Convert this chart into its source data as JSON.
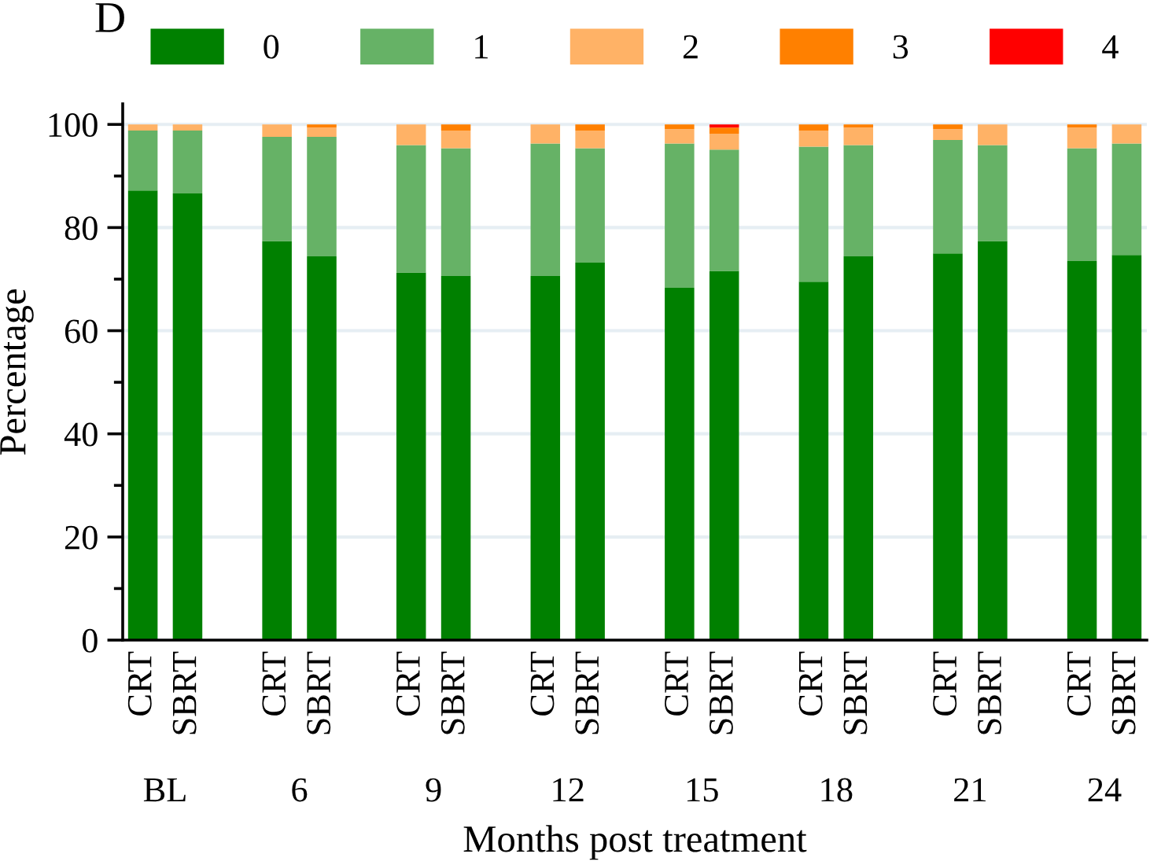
{
  "chart_data": {
    "type": "bar",
    "stacked": true,
    "title": "D",
    "xlabel": "Months post treatment",
    "ylabel": "Percentage",
    "categories": [
      "CRT",
      "SBRT",
      null,
      "CRT",
      "SBRT",
      null,
      "CRT",
      "SBRT",
      null,
      "CRT",
      "SBRT",
      null,
      "CRT",
      "SBRT",
      null,
      "CRT",
      "SBRT",
      null,
      "CRT",
      "SBRT",
      null,
      "CRT",
      "SBRT"
    ],
    "series": [
      {
        "name": "0",
        "color": "#008000",
        "values": [
          87.2,
          86.6,
          null,
          77.4,
          74.4,
          null,
          71.3,
          70.6,
          null,
          70.6,
          73.2,
          null,
          68.3,
          71.6,
          null,
          69.5,
          74.4,
          null,
          75.0,
          77.4,
          null,
          73.5,
          74.7
        ]
      },
      {
        "name": "1",
        "color": "#66b266",
        "values": [
          11.6,
          12.2,
          null,
          20.2,
          23.2,
          null,
          24.7,
          24.8,
          null,
          25.7,
          22.2,
          null,
          28.0,
          23.5,
          null,
          26.2,
          21.6,
          null,
          22.0,
          18.6,
          null,
          21.9,
          21.6
        ]
      },
      {
        "name": "2",
        "color": "#ffb266",
        "values": [
          1.2,
          1.2,
          null,
          2.4,
          1.8,
          null,
          4.0,
          3.4,
          null,
          3.7,
          3.4,
          null,
          2.8,
          3.1,
          null,
          3.1,
          3.4,
          null,
          2.1,
          4.0,
          null,
          4.0,
          3.7
        ]
      },
      {
        "name": "3",
        "color": "#ff8000",
        "values": [
          null,
          null,
          null,
          null,
          0.6,
          null,
          null,
          1.2,
          null,
          null,
          1.2,
          null,
          0.9,
          1.2,
          null,
          1.2,
          0.6,
          null,
          0.9,
          null,
          null,
          0.6,
          null
        ]
      },
      {
        "name": "4",
        "color": "#ff0000",
        "values": [
          null,
          null,
          null,
          null,
          null,
          null,
          null,
          null,
          null,
          null,
          null,
          null,
          null,
          0.6,
          null,
          null,
          null,
          null,
          null,
          null,
          null,
          null,
          null
        ]
      }
    ],
    "ylim": [
      0,
      104
    ],
    "yticks": [
      0,
      {
        "value": 10,
        "label": null
      },
      20,
      {
        "value": 30,
        "label": null
      },
      40,
      {
        "value": 50,
        "label": null
      },
      60,
      {
        "value": 70,
        "label": null
      },
      80,
      {
        "value": 90,
        "label": null
      },
      100
    ],
    "grid": "y",
    "legend": "top",
    "annotations": [
      "BL",
      "6",
      "9",
      "12",
      "15",
      "18",
      "21",
      "24"
    ]
  }
}
